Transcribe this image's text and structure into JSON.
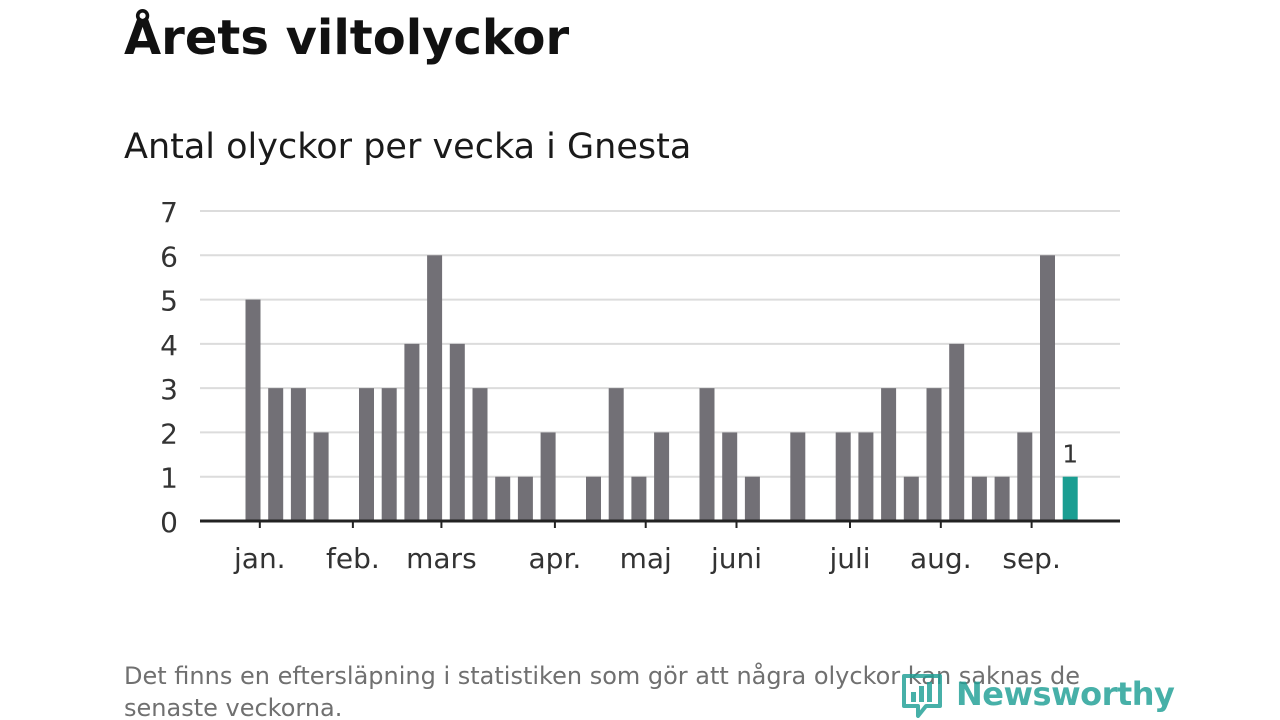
{
  "title": "Årets viltolyckor",
  "subtitle": "Antal olyckor per vecka i Gnesta",
  "footnote": "Det finns en eftersläpning i statistiken som gör att några olyckor kan saknas de senaste veckorna.",
  "brand": {
    "name": "Newsworthy",
    "icon": "newsworthy-logo-icon",
    "color": "#1f9f95"
  },
  "chart_data": {
    "type": "bar",
    "title": "Antal olyckor per vecka i Gnesta",
    "xlabel": "",
    "ylabel": "",
    "ylim": [
      0,
      7
    ],
    "yticks": [
      0,
      1,
      2,
      3,
      4,
      5,
      6,
      7
    ],
    "grid": true,
    "bar_color": "#727076",
    "highlight_color": "#1a9e92",
    "highlight_index": 36,
    "highlight_label": "1",
    "values": [
      5,
      3,
      3,
      2,
      0,
      3,
      3,
      4,
      6,
      4,
      3,
      1,
      1,
      2,
      0,
      1,
      3,
      1,
      2,
      0,
      3,
      2,
      1,
      0,
      2,
      0,
      2,
      2,
      3,
      1,
      3,
      4,
      1,
      1,
      2,
      6,
      1
    ],
    "month_ticks": [
      {
        "label": "jan.",
        "index": 0.3
      },
      {
        "label": "feb.",
        "index": 4.4
      },
      {
        "label": "mars",
        "index": 8.3
      },
      {
        "label": "apr.",
        "index": 13.3
      },
      {
        "label": "maj",
        "index": 17.3
      },
      {
        "label": "juni",
        "index": 21.3
      },
      {
        "label": "juli",
        "index": 26.3
      },
      {
        "label": "aug.",
        "index": 30.3
      },
      {
        "label": "sep.",
        "index": 34.3
      }
    ]
  }
}
